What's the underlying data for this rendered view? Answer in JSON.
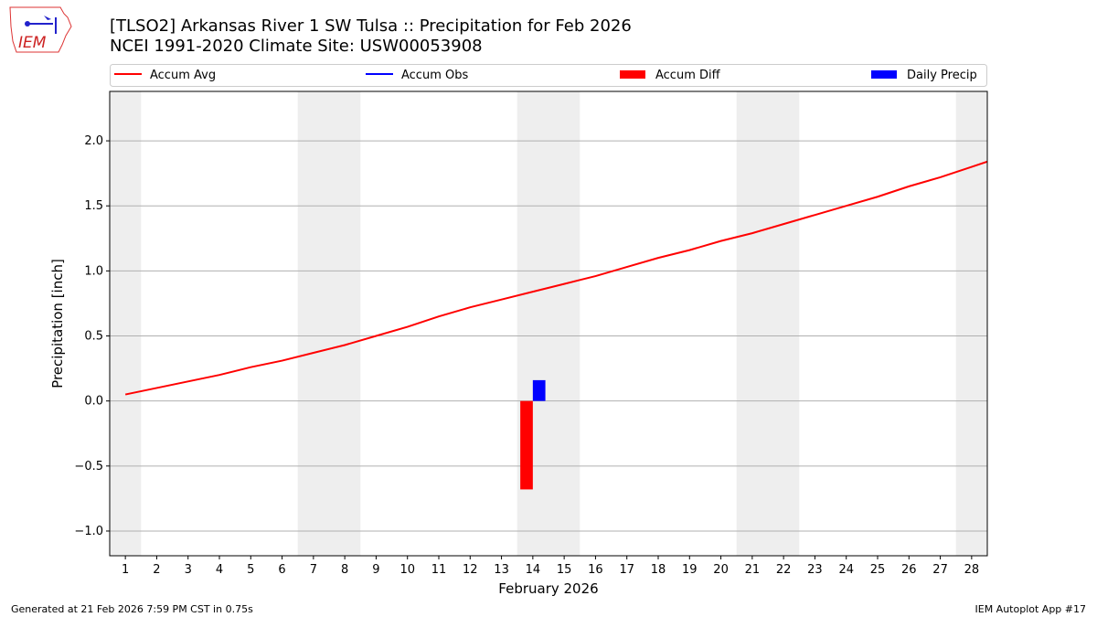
{
  "header": {
    "title": "[TLSO2] Arkansas River 1 SW Tulsa :: Precipitation for Feb 2026",
    "subtitle": "NCEI 1991-2020 Climate Site: USW00053908",
    "logo_text": "IEM"
  },
  "footer": {
    "generated": "Generated at 21 Feb 2026 7:59 PM CST in 0.75s",
    "app": "IEM Autoplot App #17"
  },
  "chart_data": {
    "type": "line",
    "xlabel": "February 2026",
    "ylabel": "Precipitation [inch]",
    "xlim": [
      0.5,
      28.5
    ],
    "ylim": [
      -1.19,
      2.38
    ],
    "xticks": [
      1,
      2,
      3,
      4,
      5,
      6,
      7,
      8,
      9,
      10,
      11,
      12,
      13,
      14,
      15,
      16,
      17,
      18,
      19,
      20,
      21,
      22,
      23,
      24,
      25,
      26,
      27,
      28
    ],
    "yticks": [
      -1.0,
      -0.5,
      0.0,
      0.5,
      1.0,
      1.5,
      2.0
    ],
    "ytick_labels": [
      "−1.0",
      "−0.5",
      "0.0",
      "0.5",
      "1.0",
      "1.5",
      "2.0"
    ],
    "grid": "y",
    "legend": {
      "placement": "top",
      "entries": [
        {
          "label": "Accum Avg",
          "kind": "line",
          "color": "#ff0000"
        },
        {
          "label": "Accum Obs",
          "kind": "line",
          "color": "#0000ff"
        },
        {
          "label": "Accum Diff",
          "kind": "bar",
          "color": "#ff0000"
        },
        {
          "label": "Daily Precip",
          "kind": "bar",
          "color": "#0000ff"
        }
      ]
    },
    "weekend_days": [
      1,
      7,
      8,
      14,
      15,
      21,
      22,
      28
    ],
    "weekend_color": "#eeeeee",
    "series": [
      {
        "name": "Accum Avg",
        "type": "line",
        "color": "#ff0000",
        "x": [
          1,
          2,
          3,
          4,
          5,
          6,
          7,
          8,
          9,
          10,
          11,
          12,
          13,
          14,
          15,
          16,
          17,
          18,
          19,
          20,
          21,
          22,
          23,
          24,
          25,
          26,
          27,
          28,
          29
        ],
        "values": [
          0.05,
          0.1,
          0.15,
          0.2,
          0.26,
          0.31,
          0.37,
          0.43,
          0.5,
          0.57,
          0.65,
          0.72,
          0.78,
          0.84,
          0.9,
          0.96,
          1.03,
          1.1,
          1.16,
          1.23,
          1.29,
          1.36,
          1.43,
          1.5,
          1.57,
          1.65,
          1.72,
          1.8,
          1.88
        ]
      },
      {
        "name": "Accum Diff",
        "type": "bar",
        "color": "#ff0000",
        "offset": -0.2,
        "x": [
          14
        ],
        "values": [
          -0.68
        ]
      },
      {
        "name": "Daily Precip",
        "type": "bar",
        "color": "#0000ff",
        "offset": 0.2,
        "x": [
          14
        ],
        "values": [
          0.16
        ]
      }
    ]
  }
}
